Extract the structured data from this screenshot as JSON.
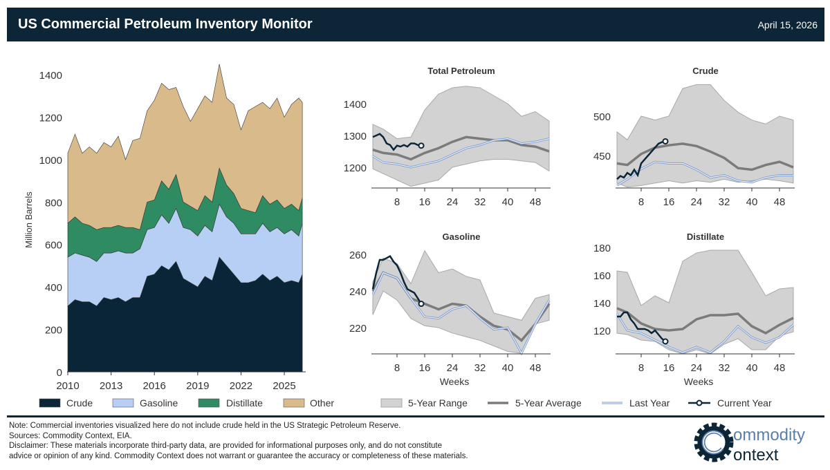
{
  "header": {
    "title": "US Commercial Petroleum Inventory Monitor",
    "date": "April 15, 2026"
  },
  "colors": {
    "crude": "#0b2538",
    "gasoline": "#b7cff5",
    "distillate": "#2e8b62",
    "other": "#d9ba8a",
    "range": "#d2d2d2",
    "average": "#7b7b7b",
    "last_year": "#7d9ccf",
    "current_year": "#0b2538",
    "header_bg": "#0c2638"
  },
  "chart_data": [
    {
      "type": "area",
      "stacked": true,
      "ylabel": "Million Barrels",
      "ylim": [
        0,
        1470
      ],
      "xlim": [
        2010,
        2026.3
      ],
      "yticks": [
        "0",
        "200",
        "400",
        "600",
        "800",
        "1000",
        "1200",
        "1400"
      ],
      "xticks": [
        "2010",
        "2013",
        "2016",
        "2019",
        "2022",
        "2025"
      ],
      "legend_position": "bottom",
      "x": [
        2010,
        2010.5,
        2011,
        2011.5,
        2012,
        2012.5,
        2013,
        2013.5,
        2014,
        2014.5,
        2015,
        2015.5,
        2016,
        2016.5,
        2017,
        2017.5,
        2018,
        2018.5,
        2019,
        2019.5,
        2020,
        2020.5,
        2021,
        2021.5,
        2022,
        2022.5,
        2023,
        2023.5,
        2024,
        2024.5,
        2025,
        2025.5,
        2026,
        2026.25
      ],
      "series": [
        {
          "name": "Crude",
          "values": [
            310,
            340,
            330,
            330,
            310,
            350,
            340,
            350,
            330,
            350,
            350,
            450,
            460,
            500,
            480,
            520,
            440,
            420,
            400,
            450,
            430,
            540,
            500,
            460,
            420,
            420,
            430,
            460,
            430,
            450,
            420,
            430,
            420,
            460
          ]
        },
        {
          "name": "Gasoline",
          "values": [
            230,
            220,
            220,
            210,
            210,
            210,
            220,
            220,
            230,
            210,
            230,
            220,
            220,
            240,
            220,
            250,
            240,
            250,
            240,
            240,
            230,
            250,
            230,
            240,
            230,
            230,
            220,
            240,
            230,
            230,
            230,
            240,
            220,
            240
          ]
        },
        {
          "name": "Distillate",
          "values": [
            160,
            170,
            150,
            150,
            150,
            120,
            120,
            120,
            120,
            120,
            90,
            130,
            130,
            160,
            160,
            160,
            120,
            110,
            120,
            140,
            140,
            170,
            150,
            140,
            120,
            110,
            100,
            130,
            130,
            130,
            120,
            120,
            120,
            120
          ]
        },
        {
          "name": "Other",
          "values": [
            330,
            390,
            330,
            370,
            360,
            400,
            380,
            420,
            320,
            410,
            430,
            430,
            470,
            460,
            470,
            410,
            450,
            400,
            480,
            470,
            470,
            490,
            410,
            420,
            370,
            470,
            500,
            440,
            450,
            480,
            430,
            470,
            530,
            450
          ]
        }
      ]
    },
    {
      "type": "line",
      "title": "Total Petroleum",
      "xlabel": "",
      "yticks": [
        "1200",
        "1300",
        "1400"
      ],
      "xticks": [
        "8",
        "16",
        "24",
        "32",
        "40",
        "48"
      ],
      "weeks": [
        1,
        4,
        8,
        12,
        16,
        20,
        24,
        28,
        32,
        36,
        40,
        44,
        48,
        52
      ],
      "range_upper": [
        1335,
        1320,
        1290,
        1295,
        1380,
        1430,
        1450,
        1455,
        1450,
        1425,
        1400,
        1360,
        1375,
        1345
      ],
      "range_lower": [
        1195,
        1180,
        1160,
        1140,
        1150,
        1160,
        1200,
        1210,
        1220,
        1225,
        1225,
        1220,
        1215,
        1188
      ],
      "average": [
        1255,
        1245,
        1240,
        1225,
        1245,
        1260,
        1280,
        1295,
        1290,
        1285,
        1285,
        1270,
        1265,
        1250
      ],
      "last_year": [
        1235,
        1215,
        1210,
        1200,
        1210,
        1220,
        1240,
        1260,
        1270,
        1285,
        1290,
        1275,
        1280,
        1290
      ],
      "current_year": [
        1295,
        1300,
        1305,
        1295,
        1275,
        1270,
        1255,
        1268,
        1265,
        1270,
        1265,
        1275,
        1275,
        1270,
        1268
      ]
    },
    {
      "type": "line",
      "title": "Crude",
      "xlabel": "",
      "yticks": [
        "450",
        "500"
      ],
      "xticks": [
        "8",
        "16",
        "24",
        "32",
        "40",
        "48"
      ],
      "weeks": [
        1,
        4,
        8,
        12,
        16,
        20,
        24,
        28,
        32,
        36,
        40,
        44,
        48,
        52
      ],
      "range_upper": [
        480,
        470,
        500,
        495,
        500,
        535,
        540,
        540,
        520,
        505,
        495,
        490,
        500,
        495
      ],
      "range_lower": [
        415,
        410,
        412,
        415,
        418,
        415,
        418,
        416,
        420,
        416,
        418,
        420,
        418,
        415
      ],
      "average": [
        440,
        438,
        452,
        460,
        463,
        465,
        462,
        455,
        447,
        434,
        432,
        438,
        442,
        435
      ],
      "last_year": [
        412,
        420,
        433,
        442,
        440,
        440,
        432,
        422,
        425,
        418,
        416,
        422,
        425,
        425
      ],
      "current_year": [
        420,
        424,
        422,
        428,
        425,
        432,
        425,
        440,
        445,
        450,
        455,
        460,
        465,
        467,
        468
      ]
    },
    {
      "type": "line",
      "title": "Gasoline",
      "xlabel": "Weeks",
      "yticks": [
        "220",
        "240",
        "260"
      ],
      "xticks": [
        "8",
        "16",
        "24",
        "32",
        "40",
        "48"
      ],
      "weeks": [
        1,
        4,
        8,
        12,
        16,
        20,
        24,
        28,
        32,
        36,
        40,
        44,
        48,
        52
      ],
      "range_upper": [
        245,
        258,
        255,
        244,
        262,
        250,
        252,
        248,
        246,
        228,
        226,
        224,
        236,
        238
      ],
      "range_lower": [
        227,
        240,
        235,
        225,
        221,
        220,
        217,
        215,
        213,
        210,
        207,
        206,
        222,
        224
      ],
      "average": [
        240,
        250,
        247,
        236,
        233,
        230,
        233,
        232,
        226,
        221,
        219,
        213,
        222,
        233
      ],
      "last_year": [
        238,
        250,
        247,
        236,
        226,
        225,
        230,
        232,
        225,
        219,
        220,
        206,
        222,
        235
      ],
      "current_year": [
        241,
        250,
        257,
        257,
        258,
        259,
        256,
        254,
        250,
        245,
        241,
        240,
        239,
        236,
        233
      ]
    },
    {
      "type": "line",
      "title": "Distillate",
      "xlabel": "Weeks",
      "yticks": [
        "120",
        "140",
        "160",
        "180"
      ],
      "xticks": [
        "8",
        "16",
        "24",
        "32",
        "40",
        "48"
      ],
      "weeks": [
        1,
        4,
        8,
        12,
        16,
        20,
        24,
        28,
        32,
        36,
        40,
        44,
        48,
        52
      ],
      "range_upper": [
        163,
        162,
        138,
        145,
        140,
        170,
        176,
        178,
        178,
        178,
        162,
        145,
        150,
        151
      ],
      "range_lower": [
        118,
        117,
        113,
        112,
        106,
        103,
        106,
        103,
        110,
        114,
        106,
        106,
        116,
        119
      ],
      "average": [
        136,
        133,
        125,
        121,
        120,
        121,
        128,
        131,
        131,
        132,
        123,
        118,
        124,
        129
      ],
      "last_year": [
        132,
        120,
        118,
        113,
        108,
        104,
        108,
        104,
        112,
        123,
        115,
        111,
        115,
        124
      ],
      "current_year": [
        130,
        130,
        133,
        133,
        128,
        125,
        121,
        121,
        121,
        120,
        118,
        120,
        117,
        114,
        112
      ]
    }
  ],
  "legend_left": [
    "Crude",
    "Gasoline",
    "Distillate",
    "Other"
  ],
  "legend_right": [
    "5-Year Range",
    "5-Year Average",
    "Last Year",
    "Current Year"
  ],
  "footer": {
    "note": "Note: Commercial inventories visualized here do not include crude held in the US Strategic Petroleum Reserve.",
    "sources": "Sources: Commodity Context, EIA.",
    "disclaimer_1": "Disclaimer: These materials incorporate third-party data, are provided for informational purposes only, and do not constitute",
    "disclaimer_2": "advice or opinion of any kind. Commodity Context does not warrant or guarantee the accuracy or completeness of these materials."
  },
  "logo": {
    "line1": "ommodity",
    "line2": "ontext",
    "icon": "gear-c-icon"
  }
}
